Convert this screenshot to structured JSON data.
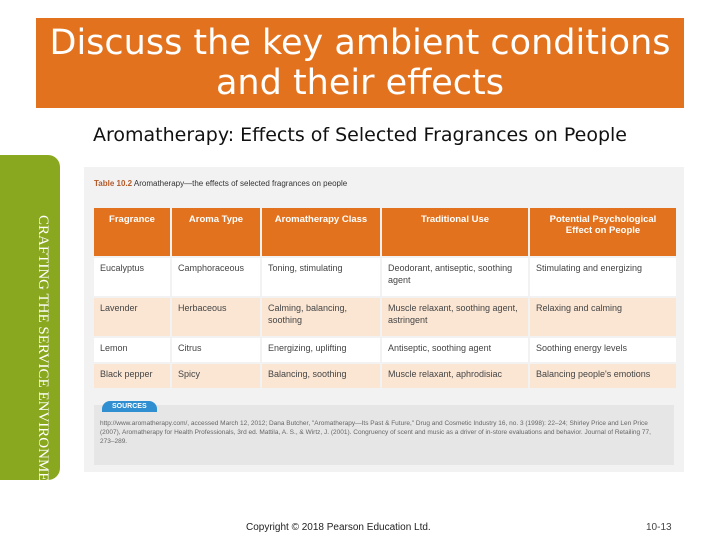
{
  "slide": {
    "title": "Discuss the key ambient conditions and their effects",
    "subtitle": "Aromatherapy: Effects of Selected Fragrances on People",
    "side_tab": "CRAFTING THE SERVICE ENVIRONMENT",
    "copyright": "Copyright © 2018 Pearson Education Ltd.",
    "page_number": "10-13",
    "accent_color": "#e2721e",
    "side_color": "#8aa81f"
  },
  "table": {
    "label": "Table 10.2",
    "caption": "Aromatherapy—the effects of selected fragrances on people",
    "headers": [
      "Fragrance",
      "Aroma Type",
      "Aromatherapy Class",
      "Traditional Use",
      "Potential Psychological Effect on People"
    ],
    "rows": [
      [
        "Eucalyptus",
        "Camphoraceous",
        "Toning, stimulating",
        "Deodorant, antiseptic, soothing agent",
        "Stimulating and energizing"
      ],
      [
        "Lavender",
        "Herbaceous",
        "Calming, balancing, soothing",
        "Muscle relaxant, soothing agent, astringent",
        "Relaxing and calming"
      ],
      [
        "Lemon",
        "Citrus",
        "Energizing, uplifting",
        "Antiseptic, soothing agent",
        "Soothing energy levels"
      ],
      [
        "Black pepper",
        "Spicy",
        "Balancing, soothing",
        "Muscle relaxant, aphrodisiac",
        "Balancing people's emotions"
      ]
    ],
    "sources_label": "SOURCES",
    "sources_text": "http://www.aromatherapy.com/, accessed March 12, 2012; Dana Butcher, \"Aromatherapy—Its Past & Future,\" Drug and Cosmetic Industry 16, no. 3 (1998): 22–24; Shirley Price and Len Price (2007), Aromatherapy for Health Professionals, 3rd ed. Mattila, A. S., & Wirtz, J. (2001). Congruency of scent and music as a driver of in-store evaluations and behavior. Journal of Retailing 77, 273–289."
  }
}
